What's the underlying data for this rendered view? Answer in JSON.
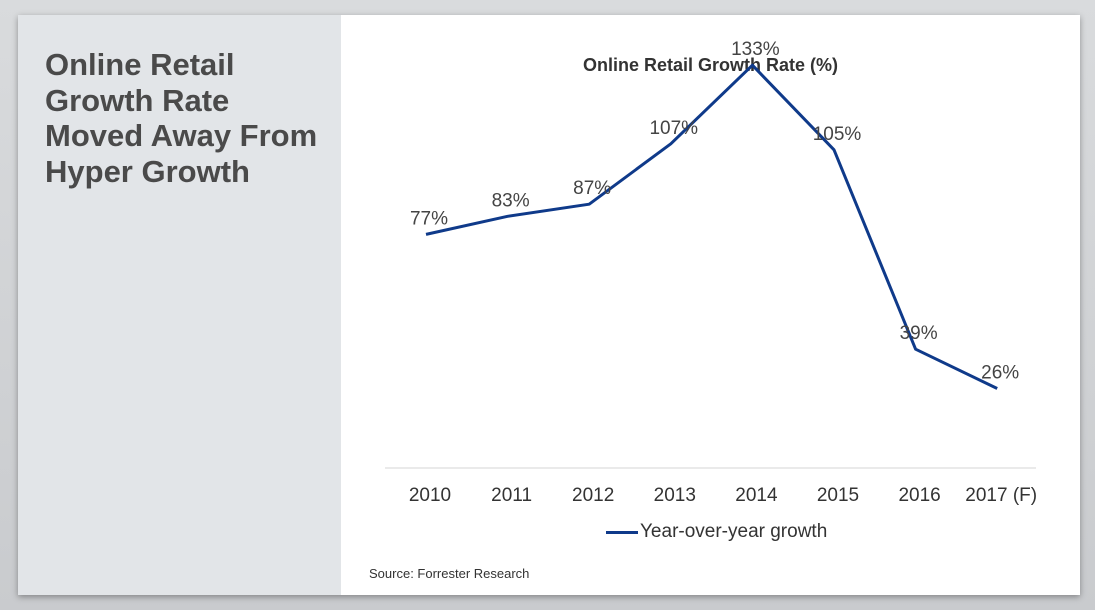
{
  "headline": "Online Retail Growth Rate Moved Away From Hyper Growth",
  "source": "Source: Forrester Research",
  "colors": {
    "line": "#0f3a8a",
    "text": "#333333",
    "panel": "#e2e5e8"
  },
  "chart_data": {
    "type": "line",
    "title": "Online Retail Growth Rate (%)",
    "xlabel": "",
    "ylabel": "",
    "categories": [
      "2010",
      "2011",
      "2012",
      "2013",
      "2014",
      "2015",
      "2016",
      "2017 (F)"
    ],
    "series": [
      {
        "name": "Year-over-year growth",
        "values": [
          77,
          83,
          87,
          107,
          133,
          105,
          39,
          26
        ],
        "labels": [
          "77%",
          "83%",
          "87%",
          "107%",
          "133%",
          "105%",
          "39%",
          "26%"
        ]
      }
    ],
    "ylim": [
      0,
      145
    ],
    "grid": false,
    "legend": "bottom"
  }
}
